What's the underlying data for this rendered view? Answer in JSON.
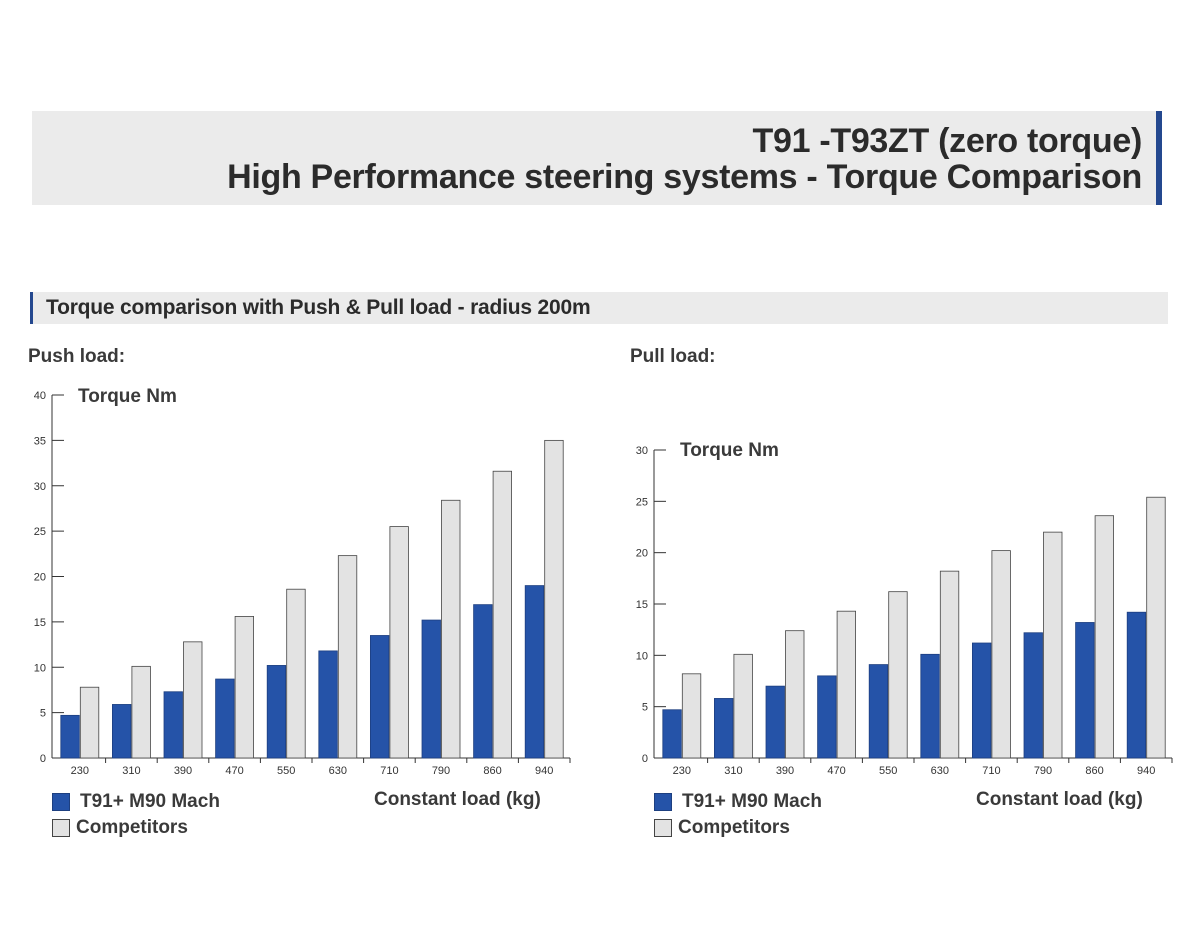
{
  "header": {
    "title_line1": "T91 -T93ZT (zero torque)",
    "title_line2": "High Performance steering systems - Torque Comparison"
  },
  "section": {
    "title": "Torque comparison with Push & Pull load - radius 200m"
  },
  "colors": {
    "accent": "#24488f",
    "series_t91": "#2553a8",
    "series_competitors": "#e3e3e3",
    "bar_outline": "#444444",
    "banner_bg": "#ebebeb"
  },
  "legend": {
    "t91_label": "T91+ M90 Mach",
    "competitors_label": "Competitors"
  },
  "chart_data": [
    {
      "id": "push_load",
      "heading": "Push load:",
      "type": "bar",
      "ylabel": "Torque Nm",
      "xlabel": "Constant load (kg)",
      "ylim": [
        0,
        40
      ],
      "yticks": [
        0,
        5,
        10,
        15,
        20,
        25,
        30,
        35,
        40
      ],
      "categories": [
        "230",
        "310",
        "390",
        "470",
        "550",
        "630",
        "710",
        "790",
        "860",
        "940"
      ],
      "series": [
        {
          "name": "T91+ M90 Mach",
          "color": "#2553a8",
          "values": [
            4.7,
            5.9,
            7.3,
            8.7,
            10.2,
            11.8,
            13.5,
            15.2,
            16.9,
            19.0
          ]
        },
        {
          "name": "Competitors",
          "color": "#e3e3e3",
          "values": [
            7.8,
            10.1,
            12.8,
            15.6,
            18.6,
            22.3,
            25.5,
            28.4,
            31.6,
            35.0
          ]
        }
      ],
      "grid": false,
      "legend_position": "bottom-left"
    },
    {
      "id": "pull_load",
      "heading": "Pull load:",
      "type": "bar",
      "ylabel": "Torque Nm",
      "xlabel": "Constant load (kg)",
      "ylim": [
        0,
        30
      ],
      "yticks": [
        0,
        5,
        10,
        15,
        20,
        25,
        30
      ],
      "categories": [
        "230",
        "310",
        "390",
        "470",
        "550",
        "630",
        "710",
        "790",
        "860",
        "940"
      ],
      "series": [
        {
          "name": "T91+ M90 Mach",
          "color": "#2553a8",
          "values": [
            4.7,
            5.8,
            7.0,
            8.0,
            9.1,
            10.1,
            11.2,
            12.2,
            13.2,
            14.2
          ]
        },
        {
          "name": "Competitors",
          "color": "#e3e3e3",
          "values": [
            8.2,
            10.1,
            12.4,
            14.3,
            16.2,
            18.2,
            20.2,
            22.0,
            23.6,
            25.4
          ]
        }
      ],
      "grid": false,
      "legend_position": "bottom-left"
    }
  ]
}
